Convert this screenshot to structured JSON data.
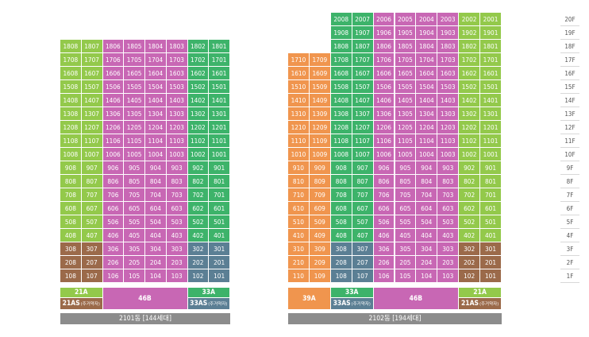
{
  "colors": {
    "light_green": "#93c94b",
    "green": "#3db36a",
    "pink": "#c867b4",
    "brown": "#9b6a4a",
    "slate": "#5b7f94",
    "orange": "#f0954e",
    "label_gray": "#8c8c8c"
  },
  "floors": [
    "20F",
    "19F",
    "18F",
    "17F",
    "16F",
    "15F",
    "14F",
    "13F",
    "12F",
    "11F",
    "10F",
    "9F",
    "8F",
    "7F",
    "6F",
    "5F",
    "4F",
    "3F",
    "2F",
    "1F"
  ],
  "buildings": [
    {
      "label": "2101동 [144세대]",
      "top_floor": 18,
      "units": [
        "08",
        "07",
        "06",
        "05",
        "04",
        "03",
        "02",
        "01"
      ],
      "types": [
        {
          "name": "21A",
          "sub": ""
        },
        {
          "name": "21AS",
          "sub": "(주거약자)"
        },
        {
          "name": "46B",
          "sub": ""
        },
        {
          "name": "33A",
          "sub": ""
        },
        {
          "name": "33AS",
          "sub": "(주거약자)"
        }
      ]
    },
    {
      "label": "2102동 [194세대]",
      "top_floor": 20,
      "top_floor_start": 18,
      "units": [
        "10",
        "09",
        "08",
        "07",
        "06",
        "05",
        "04",
        "03",
        "02",
        "01"
      ],
      "types": [
        {
          "name": "39A",
          "sub": ""
        },
        {
          "name": "33A",
          "sub": ""
        },
        {
          "name": "33AS",
          "sub": "(주거약자)"
        },
        {
          "name": "46B",
          "sub": ""
        },
        {
          "name": "21A",
          "sub": ""
        },
        {
          "name": "21AS",
          "sub": "(주거약자)"
        }
      ]
    }
  ]
}
